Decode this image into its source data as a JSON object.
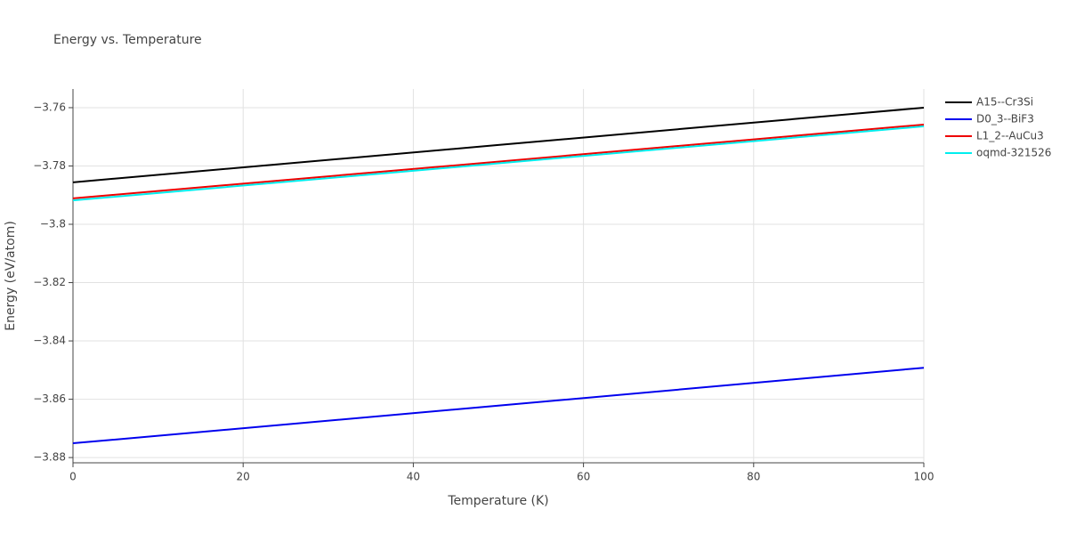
{
  "chart_data": {
    "type": "line",
    "title": "Energy vs. Temperature",
    "x_label": "Temperature (K)",
    "y_label": "Energy (eV/atom)",
    "x": [
      0,
      50,
      100
    ],
    "series": [
      {
        "name": "A15--Cr3Si",
        "color": "#000000",
        "values": [
          -3.7856,
          -3.7728,
          -3.76
        ]
      },
      {
        "name": "D0_3--BiF3",
        "color": "#0000ee",
        "values": [
          -3.8751,
          -3.8622,
          -3.8492
        ]
      },
      {
        "name": "L1_2--AuCu3",
        "color": "#ee0000",
        "values": [
          -3.7911,
          -3.7785,
          -3.7658
        ]
      },
      {
        "name": "oqmd-321526",
        "color": "#00eeee",
        "values": [
          -3.7918,
          -3.7791,
          -3.7664
        ]
      }
    ],
    "xlim": [
      0,
      100
    ],
    "xticks": [
      0,
      20,
      40,
      60,
      80,
      100
    ],
    "ylim": [
      -3.8818,
      -3.7536
    ],
    "yticks": [
      {
        "value": -3.88,
        "label": "−3.88"
      },
      {
        "value": -3.86,
        "label": "−3.86"
      },
      {
        "value": -3.84,
        "label": "−3.84"
      },
      {
        "value": -3.82,
        "label": "−3.82"
      },
      {
        "value": -3.8,
        "label": "−3.8"
      },
      {
        "value": -3.78,
        "label": "−3.78"
      },
      {
        "value": -3.76,
        "label": "−3.76"
      }
    ],
    "grid": true,
    "legend": "right"
  }
}
